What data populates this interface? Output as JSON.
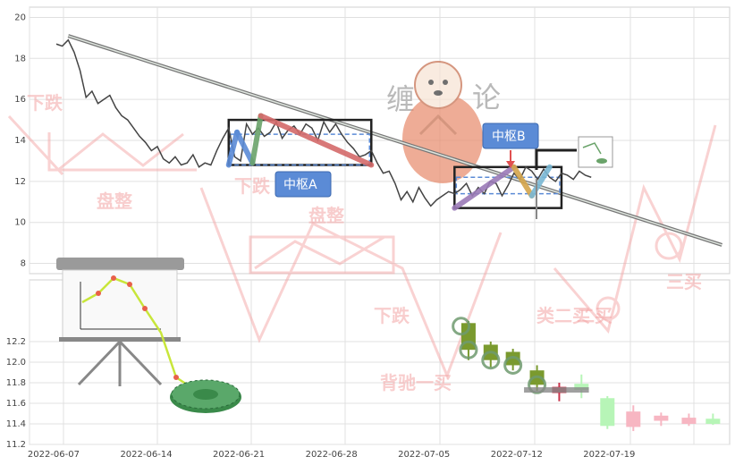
{
  "chart_data": [
    {
      "type": "line",
      "panel": "main",
      "ylim": [
        7.5,
        20.5
      ],
      "yticks": [
        "20",
        "18",
        "16",
        "14",
        "12",
        "10",
        "8"
      ],
      "xlim": [
        0,
        58
      ],
      "price": {
        "x": [
          0,
          0.5,
          1,
          1.5,
          2,
          2.5,
          3,
          3.5,
          4,
          4.5,
          5,
          5.5,
          6,
          6.5,
          7,
          7.5,
          8,
          8.5,
          9,
          9.5,
          10,
          10.5,
          11,
          11.5,
          12,
          12.5,
          13,
          13.5,
          14,
          14.5,
          15,
          15.5,
          16,
          16.5,
          17,
          17.5,
          18,
          18.5,
          19,
          19.5,
          20,
          20.5,
          21,
          21.5,
          22,
          22.5,
          23,
          23.5,
          24,
          24.5,
          25,
          25.5,
          26,
          26.5,
          27,
          27.5,
          28,
          28.5,
          29,
          29.5,
          30,
          30.5,
          31,
          31.5,
          32,
          32.5,
          33,
          33.5,
          34,
          34.5,
          35,
          35.5,
          36,
          36.5,
          37,
          37.5,
          38,
          38.5,
          39,
          39.5,
          40,
          40.5,
          41,
          41.5,
          42,
          42.5,
          43,
          43.5,
          44,
          44.5,
          45
        ],
        "y": [
          18.7,
          18.6,
          18.9,
          18.3,
          17.4,
          16.1,
          16.4,
          15.8,
          16.0,
          16.2,
          15.6,
          15.2,
          15.0,
          14.6,
          14.2,
          13.9,
          13.5,
          13.7,
          13.1,
          12.9,
          13.2,
          12.8,
          12.9,
          13.3,
          12.7,
          12.9,
          12.8,
          13.5,
          14.1,
          14.6,
          13.2,
          13.0,
          14.8,
          14.3,
          14.6,
          14.2,
          14.4,
          14.9,
          14.1,
          14.5,
          14.7,
          14.3,
          14.8,
          14.6,
          14.0,
          14.9,
          14.4,
          14.8,
          14.3,
          13.9,
          13.6,
          13.2,
          13.3,
          13.5,
          12.9,
          12.4,
          12.5,
          11.9,
          11.1,
          11.5,
          11.0,
          11.7,
          11.2,
          10.8,
          11.1,
          11.3,
          11.5,
          11.4,
          11.6,
          11.9,
          11.3,
          11.7,
          11.4,
          12.0,
          11.9,
          11.3,
          11.8,
          12.4,
          12.1,
          12.7,
          12.5,
          12.1,
          12.6,
          12.2,
          12.0,
          12.4,
          12.3,
          12.1,
          12.5,
          12.3,
          12.2
        ]
      },
      "trendline": {
        "x": [
          1,
          56
        ],
        "y": [
          19.1,
          8.9
        ]
      },
      "pivot_boxes": [
        {
          "label": "中枢A",
          "x": [
            14.5,
            26.5
          ],
          "y": [
            12.8,
            15.0
          ],
          "inner_y": [
            12.8,
            14.3
          ]
        },
        {
          "label": "中枢B",
          "x": [
            33.5,
            42.5
          ],
          "y": [
            10.7,
            12.7
          ],
          "inner_y": [
            11.4,
            12.2
          ]
        }
      ],
      "strokes": [
        {
          "color": "#5b8bd6",
          "x": [
            14.5,
            15.2
          ],
          "y": [
            12.8,
            14.4
          ]
        },
        {
          "color": "#5b8bd6",
          "x": [
            15.2,
            16.5
          ],
          "y": [
            14.4,
            12.9
          ]
        },
        {
          "color": "#6aa36a",
          "x": [
            16.5,
            17.2
          ],
          "y": [
            12.9,
            15.2
          ]
        },
        {
          "color": "#d46a6a",
          "x": [
            17.2,
            26.5
          ],
          "y": [
            15.2,
            12.8
          ]
        },
        {
          "color": "#9b7bb8",
          "x": [
            33.5,
            38.5
          ],
          "y": [
            10.7,
            12.7
          ]
        },
        {
          "color": "#d4a54b",
          "x": [
            38.5,
            40.0
          ],
          "y": [
            12.7,
            11.3
          ]
        },
        {
          "color": "#7ab8d4",
          "x": [
            40.0,
            41.5
          ],
          "y": [
            11.3,
            12.7
          ]
        }
      ]
    },
    {
      "type": "candlestick",
      "panel": "lower",
      "ylim": [
        11.2,
        12.8
      ],
      "yticks": [
        "12.2",
        "12.0",
        "11.8",
        "11.6",
        "11.4",
        "11.2"
      ],
      "xticks": [
        "2022-06-07",
        "2022-06-14",
        "2022-06-21",
        "2022-06-28",
        "2022-07-05",
        "2022-07-12",
        "2022-07-19"
      ],
      "xtick_x": [
        0,
        5,
        10,
        15,
        20,
        25,
        30
      ],
      "xlim": [
        -1.3,
        36.5
      ],
      "candles": [
        {
          "x": 22.4,
          "open": 12.38,
          "close": 12.12,
          "high": 12.4,
          "low": 12.02,
          "color": "green"
        },
        {
          "x": 23.6,
          "open": 12.17,
          "close": 12.02,
          "high": 12.2,
          "low": 11.95,
          "color": "green"
        },
        {
          "x": 24.8,
          "open": 12.1,
          "close": 11.97,
          "high": 12.13,
          "low": 11.92,
          "color": "green"
        },
        {
          "x": 26.1,
          "open": 11.92,
          "close": 11.78,
          "high": 11.97,
          "low": 11.72,
          "color": "green"
        },
        {
          "x": 27.3,
          "open": 11.76,
          "close": 11.7,
          "high": 11.8,
          "low": 11.62,
          "color": "red"
        },
        {
          "x": 28.5,
          "open": 11.79,
          "close": 11.73,
          "high": 11.88,
          "low": 11.65,
          "color": "light-green"
        },
        {
          "x": 29.9,
          "open": 11.65,
          "close": 11.38,
          "high": 11.67,
          "low": 11.35,
          "color": "light-green"
        },
        {
          "x": 31.3,
          "open": 11.52,
          "close": 11.37,
          "high": 11.58,
          "low": 11.33,
          "color": "pink"
        },
        {
          "x": 32.8,
          "open": 11.48,
          "close": 11.43,
          "high": 11.51,
          "low": 11.38,
          "color": "pink"
        },
        {
          "x": 34.3,
          "open": 11.46,
          "close": 11.4,
          "high": 11.5,
          "low": 11.38,
          "color": "pink"
        },
        {
          "x": 35.6,
          "open": 11.45,
          "close": 11.4,
          "high": 11.5,
          "low": 11.39,
          "color": "light-green"
        }
      ]
    }
  ],
  "watermark": {
    "title_left": "缠",
    "title_right": "论",
    "labels": [
      "下跌",
      "下跌",
      "盘整",
      "盘整",
      "下跌",
      "背驰一买",
      "三买",
      "二买",
      "类二买"
    ]
  },
  "colors": {
    "price_line": "#444444",
    "trendline": "#9aa89a",
    "pivot_box": "#222222",
    "pivot_inner": "#5b8bd6",
    "label_box": "#5b8bd6",
    "candle_green": "#7a9a2e",
    "candle_red": "#c8324a",
    "candle_light_green": "#b7f5b7",
    "candle_pink": "#f7b6c2",
    "watermark": "#f4a6a6"
  },
  "icons": [
    "easel-chart-icon",
    "round-mat-icon",
    "mascot-dog-icon",
    "mini-chart-icon",
    "arrow-down-icon"
  ]
}
